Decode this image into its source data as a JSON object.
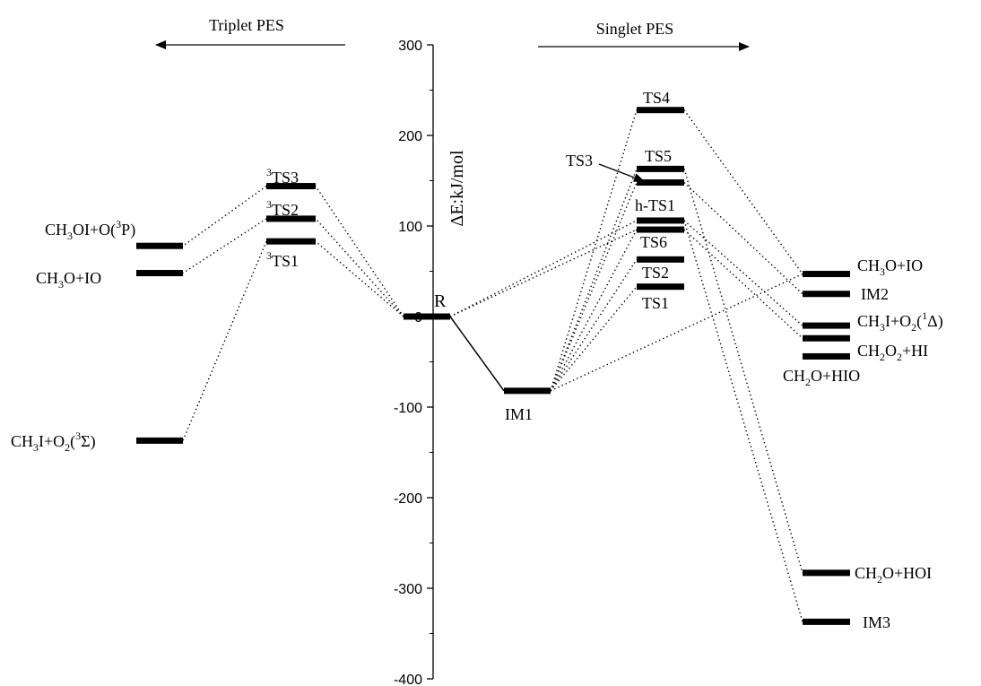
{
  "headers": {
    "triplet": "Triplet PES",
    "singlet": "Singlet PES"
  },
  "axis": {
    "label": "ΔE:kJ/mol",
    "ticks": [
      300,
      200,
      100,
      0,
      -100,
      -200,
      -300,
      -400
    ],
    "range": [
      -400,
      300
    ]
  },
  "levels": [
    {
      "id": "CH3OI_O3P",
      "energy": 78
    },
    {
      "id": "CH3O_IO_t",
      "energy": 48
    },
    {
      "id": "CH3I_O2_3S",
      "energy": -137
    },
    {
      "id": "3TS3",
      "energy": 144
    },
    {
      "id": "3TS2",
      "energy": 108
    },
    {
      "id": "3TS1",
      "energy": 83
    },
    {
      "id": "R",
      "energy": 0
    },
    {
      "id": "IM1",
      "energy": -82
    },
    {
      "id": "TS4",
      "energy": 228
    },
    {
      "id": "TS5",
      "energy": 163
    },
    {
      "id": "TS3",
      "energy": 148
    },
    {
      "id": "h-TS1",
      "energy": 106
    },
    {
      "id": "TS6",
      "energy": 96
    },
    {
      "id": "TS2",
      "energy": 63
    },
    {
      "id": "TS1",
      "energy": 33
    },
    {
      "id": "CH3O_IO_s",
      "energy": 47
    },
    {
      "id": "IM2",
      "energy": 25
    },
    {
      "id": "CH3I_O2_1D",
      "energy": -10
    },
    {
      "id": "CH2O2_HI",
      "energy": -24
    },
    {
      "id": "CH2O_HIO",
      "energy": -44
    },
    {
      "id": "CH2O_HOI",
      "energy": -283
    },
    {
      "id": "IM3",
      "energy": -337
    }
  ],
  "labels": {
    "CH3OI_O3P": {
      "main": "CH",
      "s1": "3",
      "mid": "OI+O",
      "sup": "3",
      "end": "P"
    },
    "CH3O_IO_t": {
      "main": "CH",
      "s1": "3",
      "end": "O+IO"
    },
    "CH3I_O2_3S": {
      "main": "CH",
      "s1": "3",
      "mid": "I+O",
      "s2": "2",
      "sup": "3",
      "end": "Σ"
    },
    "3TS3": {
      "sup": "3",
      "end": "TS3"
    },
    "3TS2": {
      "sup": "3",
      "end": "TS2"
    },
    "3TS1": {
      "sup": "3",
      "end": "TS1"
    },
    "R": "R",
    "IM1": "IM1",
    "TS4": "TS4",
    "TS5": "TS5",
    "TS3": "TS3",
    "h-TS1": "h-TS1",
    "TS6": "TS6",
    "TS2": "TS2",
    "TS1": "TS1",
    "CH3O_IO_s": {
      "main": "CH",
      "s1": "3",
      "end": "O+IO"
    },
    "IM2": "IM2",
    "CH3I_O2_1D": {
      "main": "CH",
      "s1": "3",
      "mid": "I+O",
      "s2": "2",
      "sup": "1",
      "end": "Δ"
    },
    "CH2O2_HI": {
      "main": "CH",
      "s1": "2",
      "mid": "O",
      "s2": "2",
      "end": "+HI"
    },
    "CH2O_HIO": {
      "main": "CH",
      "s1": "2",
      "end": "O+HIO"
    },
    "CH2O_HOI": {
      "main": "CH",
      "s1": "2",
      "end": "O+HOI"
    },
    "IM3": "IM3"
  },
  "connections": {
    "solid": [
      [
        "R",
        "IM1"
      ]
    ],
    "dotted": [
      [
        "R",
        "3TS3"
      ],
      [
        "R",
        "3TS2"
      ],
      [
        "R",
        "3TS1"
      ],
      [
        "3TS3",
        "CH3OI_O3P"
      ],
      [
        "3TS2",
        "CH3O_IO_t"
      ],
      [
        "3TS1",
        "CH3I_O2_3S"
      ],
      [
        "R",
        "h-TS1"
      ],
      [
        "R",
        "TS6"
      ],
      [
        "IM1",
        "TS4"
      ],
      [
        "IM1",
        "TS5"
      ],
      [
        "IM1",
        "TS3"
      ],
      [
        "IM1",
        "TS6"
      ],
      [
        "IM1",
        "TS2"
      ],
      [
        "IM1",
        "TS1"
      ],
      [
        "IM1",
        "CH3O_IO_s"
      ],
      [
        "TS4",
        "CH3O_IO_s"
      ],
      [
        "TS5",
        "CH2O_HOI"
      ],
      [
        "TS3",
        "IM2"
      ],
      [
        "h-TS1",
        "IM3"
      ],
      [
        "h-TS1",
        "CH3I_O2_1D"
      ],
      [
        "TS6",
        "CH2O2_HI"
      ]
    ]
  }
}
